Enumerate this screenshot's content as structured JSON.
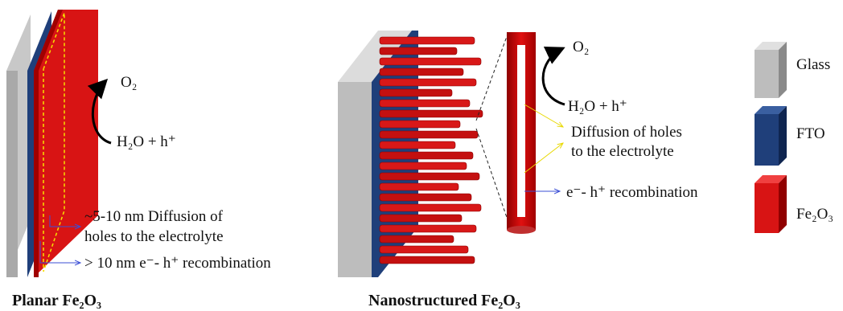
{
  "planar": {
    "o2": "O₂",
    "reaction": "H₂O + h⁺",
    "diffusion_line1": "~5-10 nm Diffusion of",
    "diffusion_line2": "holes to the electrolyte",
    "recombination": "> 10 nm e⁻- h⁺ recombination",
    "caption": "Planar Fe₂O₃"
  },
  "nano": {
    "o2": "O₂",
    "reaction": "H₂O + h⁺",
    "diffusion_line1": "Diffusion of holes",
    "diffusion_line2": "to the electrolyte",
    "recombination": "e⁻- h⁺ recombination",
    "caption": "Nanostructured Fe₂O₃"
  },
  "legend": {
    "glass": "Glass",
    "fto": "FTO",
    "fe2o3": "Fe₂O₃"
  }
}
